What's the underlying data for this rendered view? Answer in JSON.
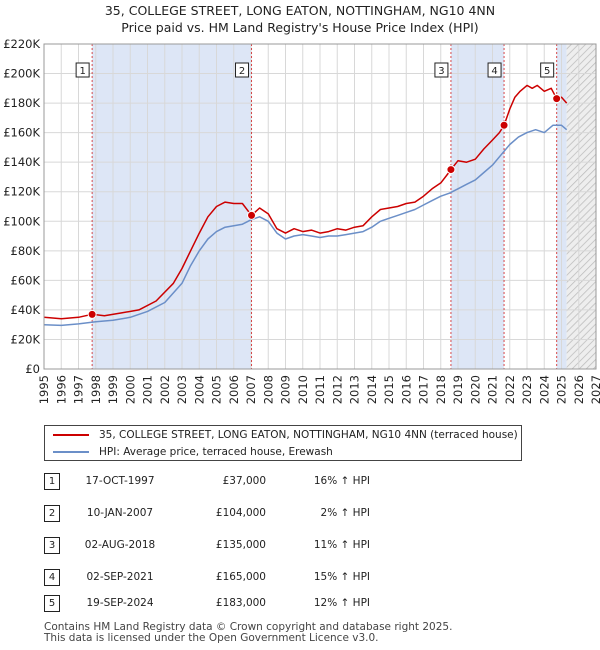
{
  "title_line1": "35, COLLEGE STREET, LONG EATON, NOTTINGHAM, NG10 4NN",
  "title_line2": "Price paid vs. HM Land Registry's House Price Index (HPI)",
  "legend": {
    "property_label": "35, COLLEGE STREET, LONG EATON, NOTTINGHAM, NG10 4NN (terraced house)",
    "hpi_label": "HPI: Average price, terraced house, Erewash"
  },
  "sales": [
    {
      "num": "1",
      "date": "17-OCT-1997",
      "price": "£37,000",
      "hpi": "16% ↑ HPI"
    },
    {
      "num": "2",
      "date": "10-JAN-2007",
      "price": "£104,000",
      "hpi": "2% ↑ HPI"
    },
    {
      "num": "3",
      "date": "02-AUG-2018",
      "price": "£135,000",
      "hpi": "11% ↑ HPI"
    },
    {
      "num": "4",
      "date": "02-SEP-2021",
      "price": "£165,000",
      "hpi": "15% ↑ HPI"
    },
    {
      "num": "5",
      "date": "19-SEP-2024",
      "price": "£183,000",
      "hpi": "12% ↑ HPI"
    }
  ],
  "footer_line1": "Contains HM Land Registry data © Crown copyright and database right 2025.",
  "footer_line2": "This data is licensed under the Open Government Licence v3.0.",
  "chart_data": {
    "type": "line",
    "title": "Price paid vs. HM Land Registry's House Price Index (HPI)",
    "xlim": [
      1995,
      2027
    ],
    "ylim": [
      0,
      220000
    ],
    "x_ticks": [
      1995,
      1996,
      1997,
      1998,
      1999,
      2000,
      2001,
      2002,
      2003,
      2004,
      2005,
      2006,
      2007,
      2008,
      2009,
      2010,
      2011,
      2012,
      2013,
      2014,
      2015,
      2016,
      2017,
      2018,
      2019,
      2020,
      2021,
      2022,
      2023,
      2024,
      2025,
      2026,
      2027
    ],
    "y_ticks": [
      0,
      20000,
      40000,
      60000,
      80000,
      100000,
      120000,
      140000,
      160000,
      180000,
      200000,
      220000
    ],
    "y_tick_labels": [
      "£0",
      "£20K",
      "£40K",
      "£60K",
      "£80K",
      "£100K",
      "£120K",
      "£140K",
      "£160K",
      "£180K",
      "£200K",
      "£220K"
    ],
    "shaded_ranges": [
      [
        1997.79,
        2007.03
      ],
      [
        2018.59,
        2021.67
      ],
      [
        2024.72,
        2025.3
      ]
    ],
    "hatch_from": 2025.3,
    "colors": {
      "property": "#cc0000",
      "hpi": "#6b8fc8",
      "shade": "#dde6f6",
      "grid": "#d8d8d8"
    },
    "series": [
      {
        "name": "35, COLLEGE STREET, LONG EATON, NOTTINGHAM, NG10 4NN (terraced house)",
        "x": [
          1995.0,
          1996.0,
          1997.0,
          1997.79,
          1998.5,
          1999.5,
          2000.5,
          2001.5,
          2002.5,
          2003.0,
          2003.5,
          2004.0,
          2004.5,
          2005.0,
          2005.5,
          2006.0,
          2006.5,
          2007.03,
          2007.5,
          2008.0,
          2008.5,
          2009.0,
          2009.5,
          2010.0,
          2010.5,
          2011.0,
          2011.5,
          2012.0,
          2012.5,
          2013.0,
          2013.5,
          2014.0,
          2014.5,
          2015.0,
          2015.5,
          2016.0,
          2016.5,
          2017.0,
          2017.5,
          2018.0,
          2018.4,
          2018.59,
          2019.0,
          2019.5,
          2020.0,
          2020.5,
          2021.0,
          2021.4,
          2021.67,
          2022.0,
          2022.3,
          2022.6,
          2023.0,
          2023.3,
          2023.6,
          2024.0,
          2024.4,
          2024.72,
          2025.0,
          2025.3
        ],
        "y": [
          35000,
          34000,
          35000,
          37000,
          36000,
          38000,
          40000,
          46000,
          58000,
          68000,
          80000,
          92000,
          103000,
          110000,
          113000,
          112000,
          112000,
          104000,
          109000,
          105000,
          95000,
          92000,
          95000,
          93000,
          94000,
          92000,
          93000,
          95000,
          94000,
          96000,
          97000,
          103000,
          108000,
          109000,
          110000,
          112000,
          113000,
          117000,
          122000,
          126000,
          132000,
          135000,
          141000,
          140000,
          142000,
          149000,
          155000,
          160000,
          165000,
          176000,
          184000,
          188000,
          192000,
          190000,
          192000,
          188000,
          190000,
          183000,
          184000,
          180000
        ]
      },
      {
        "name": "HPI: Average price, terraced house, Erewash",
        "x": [
          1995.0,
          1996.0,
          1997.0,
          1998.0,
          1999.0,
          2000.0,
          2001.0,
          2002.0,
          2003.0,
          2003.5,
          2004.0,
          2004.5,
          2005.0,
          2005.5,
          2006.0,
          2006.5,
          2007.0,
          2007.5,
          2008.0,
          2008.5,
          2009.0,
          2009.5,
          2010.0,
          2010.5,
          2011.0,
          2011.5,
          2012.0,
          2012.5,
          2013.0,
          2013.5,
          2014.0,
          2014.5,
          2015.0,
          2015.5,
          2016.0,
          2016.5,
          2017.0,
          2017.5,
          2018.0,
          2018.5,
          2019.0,
          2019.5,
          2020.0,
          2020.5,
          2021.0,
          2021.5,
          2022.0,
          2022.5,
          2023.0,
          2023.5,
          2024.0,
          2024.5,
          2025.0,
          2025.3
        ],
        "y": [
          30000,
          29500,
          30500,
          32000,
          33000,
          35000,
          39000,
          45000,
          58000,
          70000,
          80000,
          88000,
          93000,
          96000,
          97000,
          98000,
          101000,
          103000,
          100000,
          92000,
          88000,
          90000,
          91000,
          90000,
          89000,
          90000,
          90000,
          91000,
          92000,
          93000,
          96000,
          100000,
          102000,
          104000,
          106000,
          108000,
          111000,
          114000,
          117000,
          119000,
          122000,
          125000,
          128000,
          133000,
          138000,
          145000,
          152000,
          157000,
          160000,
          162000,
          160000,
          165000,
          165000,
          162000
        ]
      }
    ],
    "sale_points": [
      {
        "label": "1",
        "x": 1997.79,
        "y": 37000
      },
      {
        "label": "2",
        "x": 2007.03,
        "y": 104000
      },
      {
        "label": "3",
        "x": 2018.59,
        "y": 135000
      },
      {
        "label": "4",
        "x": 2021.67,
        "y": 165000
      },
      {
        "label": "5",
        "x": 2024.72,
        "y": 183000
      }
    ]
  }
}
